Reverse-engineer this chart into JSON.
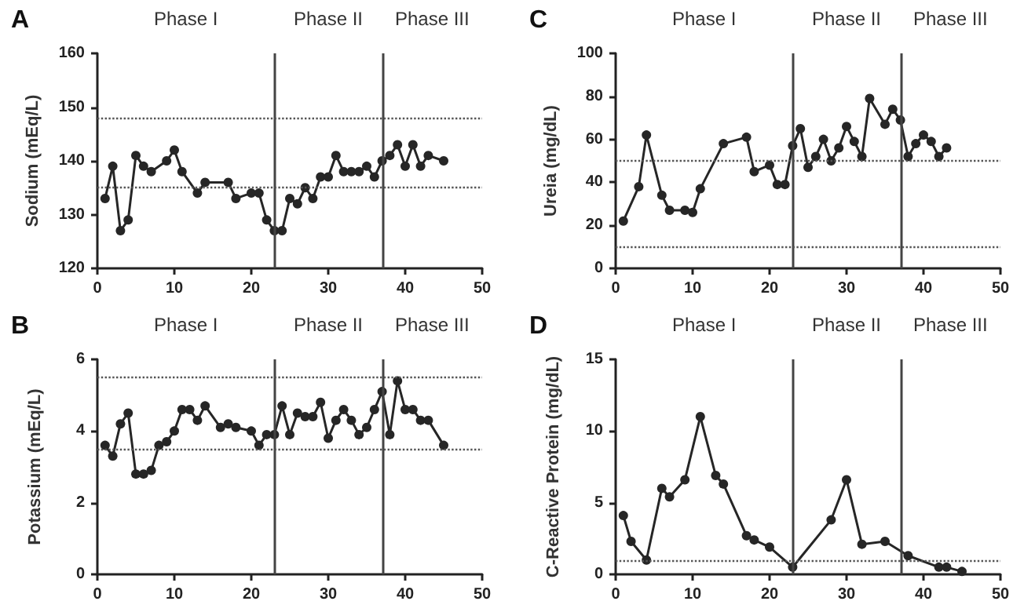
{
  "chart_data": [
    {
      "type": "line",
      "title": "A",
      "ylabel": "Sodium (mEq/L)",
      "color": "#262626",
      "marker": "circle",
      "line_style": "solid",
      "grid": false,
      "x": [
        1,
        2,
        3,
        4,
        5,
        6,
        7,
        9,
        10,
        11,
        13,
        14,
        17,
        18,
        20,
        21,
        22,
        23,
        24,
        25,
        26,
        27,
        28,
        29,
        30,
        31,
        32,
        33,
        34,
        35,
        36,
        37,
        38,
        39,
        40,
        41,
        42,
        43,
        45
      ],
      "values": [
        133,
        139,
        127,
        129,
        141,
        139,
        138,
        140,
        142,
        138,
        134,
        136,
        136,
        133,
        134,
        134,
        129,
        127,
        127,
        133,
        132,
        135,
        133,
        137,
        137,
        141,
        138,
        138,
        138,
        139,
        137,
        140,
        141,
        143,
        139,
        143,
        139,
        141,
        140
      ],
      "xlim": [
        0,
        50
      ],
      "xticks": [
        0,
        10,
        20,
        30,
        40,
        50
      ],
      "ylim": [
        120,
        160
      ],
      "yticks": [
        120,
        130,
        140,
        150,
        160
      ],
      "ref_lines": [
        {
          "axis": "x",
          "value": 23,
          "line_style": "solid"
        },
        {
          "axis": "x",
          "value": 37,
          "line_style": "solid"
        },
        {
          "axis": "y",
          "value": 148,
          "line_style": "dotted"
        },
        {
          "axis": "y",
          "value": 135,
          "line_style": "dotted"
        }
      ],
      "annotations": [
        "Phase I",
        "Phase II",
        "Phase III"
      ]
    },
    {
      "type": "line",
      "title": "C",
      "ylabel": "Ureia (mg/dL)",
      "color": "#262626",
      "marker": "circle",
      "line_style": "solid",
      "grid": false,
      "x": [
        1,
        3,
        4,
        6,
        7,
        9,
        10,
        11,
        14,
        17,
        18,
        20,
        21,
        22,
        23,
        24,
        25,
        26,
        27,
        28,
        29,
        30,
        31,
        32,
        33,
        35,
        36,
        37,
        38,
        39,
        40,
        41,
        42,
        43
      ],
      "values": [
        22,
        38,
        62,
        34,
        27,
        27,
        26,
        37,
        58,
        61,
        45,
        48,
        39,
        39,
        57,
        65,
        47,
        52,
        60,
        50,
        56,
        66,
        59,
        52,
        79,
        67,
        74,
        69,
        52,
        58,
        62,
        59,
        52,
        56
      ],
      "xlim": [
        0,
        50
      ],
      "xticks": [
        0,
        10,
        20,
        30,
        40,
        50
      ],
      "ylim": [
        0,
        100
      ],
      "yticks": [
        0,
        20,
        40,
        60,
        80,
        100
      ],
      "ref_lines": [
        {
          "axis": "x",
          "value": 23,
          "line_style": "solid"
        },
        {
          "axis": "x",
          "value": 37,
          "line_style": "solid"
        },
        {
          "axis": "y",
          "value": 50,
          "line_style": "dotted"
        },
        {
          "axis": "y",
          "value": 10,
          "line_style": "dotted"
        }
      ],
      "annotations": [
        "Phase I",
        "Phase II",
        "Phase III"
      ]
    },
    {
      "type": "line",
      "title": "B",
      "ylabel": "Potassium (mEq/L)",
      "color": "#262626",
      "marker": "circle",
      "line_style": "solid",
      "grid": false,
      "x": [
        1,
        2,
        3,
        4,
        5,
        6,
        7,
        8,
        9,
        10,
        11,
        12,
        13,
        14,
        16,
        17,
        18,
        20,
        21,
        22,
        23,
        24,
        25,
        26,
        27,
        28,
        29,
        30,
        31,
        32,
        33,
        34,
        35,
        36,
        37,
        38,
        39,
        40,
        41,
        42,
        43,
        45
      ],
      "values": [
        3.6,
        3.3,
        4.2,
        4.5,
        2.8,
        2.8,
        2.9,
        3.6,
        3.7,
        4.0,
        4.6,
        4.6,
        4.3,
        4.7,
        4.1,
        4.2,
        4.1,
        4.0,
        3.6,
        3.9,
        3.9,
        4.7,
        3.9,
        4.5,
        4.4,
        4.4,
        4.8,
        3.8,
        4.3,
        4.6,
        4.3,
        3.9,
        4.1,
        4.6,
        5.1,
        3.9,
        5.4,
        4.6,
        4.6,
        4.3,
        4.3,
        3.6
      ],
      "xlim": [
        0,
        50
      ],
      "xticks": [
        0,
        10,
        20,
        30,
        40,
        50
      ],
      "ylim": [
        0,
        6
      ],
      "yticks": [
        0,
        2,
        4,
        6
      ],
      "ref_lines": [
        {
          "axis": "x",
          "value": 23,
          "line_style": "solid"
        },
        {
          "axis": "x",
          "value": 37,
          "line_style": "solid"
        },
        {
          "axis": "y",
          "value": 5.5,
          "line_style": "dotted"
        },
        {
          "axis": "y",
          "value": 3.5,
          "line_style": "dotted"
        }
      ],
      "annotations": [
        "Phase I",
        "Phase II",
        "Phase III"
      ]
    },
    {
      "type": "line",
      "title": "D",
      "ylabel": "C-Reactive Protein (mg/dL)",
      "color": "#262626",
      "marker": "circle",
      "line_style": "solid",
      "grid": false,
      "x": [
        1,
        2,
        4,
        6,
        7,
        9,
        11,
        13,
        14,
        17,
        18,
        20,
        23,
        28,
        30,
        32,
        35,
        38,
        42,
        43,
        45
      ],
      "values": [
        4.1,
        2.3,
        1.0,
        6.0,
        5.4,
        6.6,
        11.0,
        6.9,
        6.3,
        2.7,
        2.4,
        1.9,
        0.5,
        3.8,
        6.6,
        2.1,
        2.3,
        1.3,
        0.5,
        0.5,
        0.2
      ],
      "xlim": [
        0,
        50
      ],
      "xticks": [
        0,
        10,
        20,
        30,
        40,
        50
      ],
      "ylim": [
        0,
        15
      ],
      "yticks": [
        0,
        5,
        10,
        15
      ],
      "ref_lines": [
        {
          "axis": "x",
          "value": 23,
          "line_style": "solid"
        },
        {
          "axis": "x",
          "value": 37,
          "line_style": "solid"
        },
        {
          "axis": "y",
          "value": 1,
          "line_style": "dotted"
        }
      ],
      "annotations": [
        "Phase I",
        "Phase II",
        "Phase III"
      ]
    }
  ]
}
